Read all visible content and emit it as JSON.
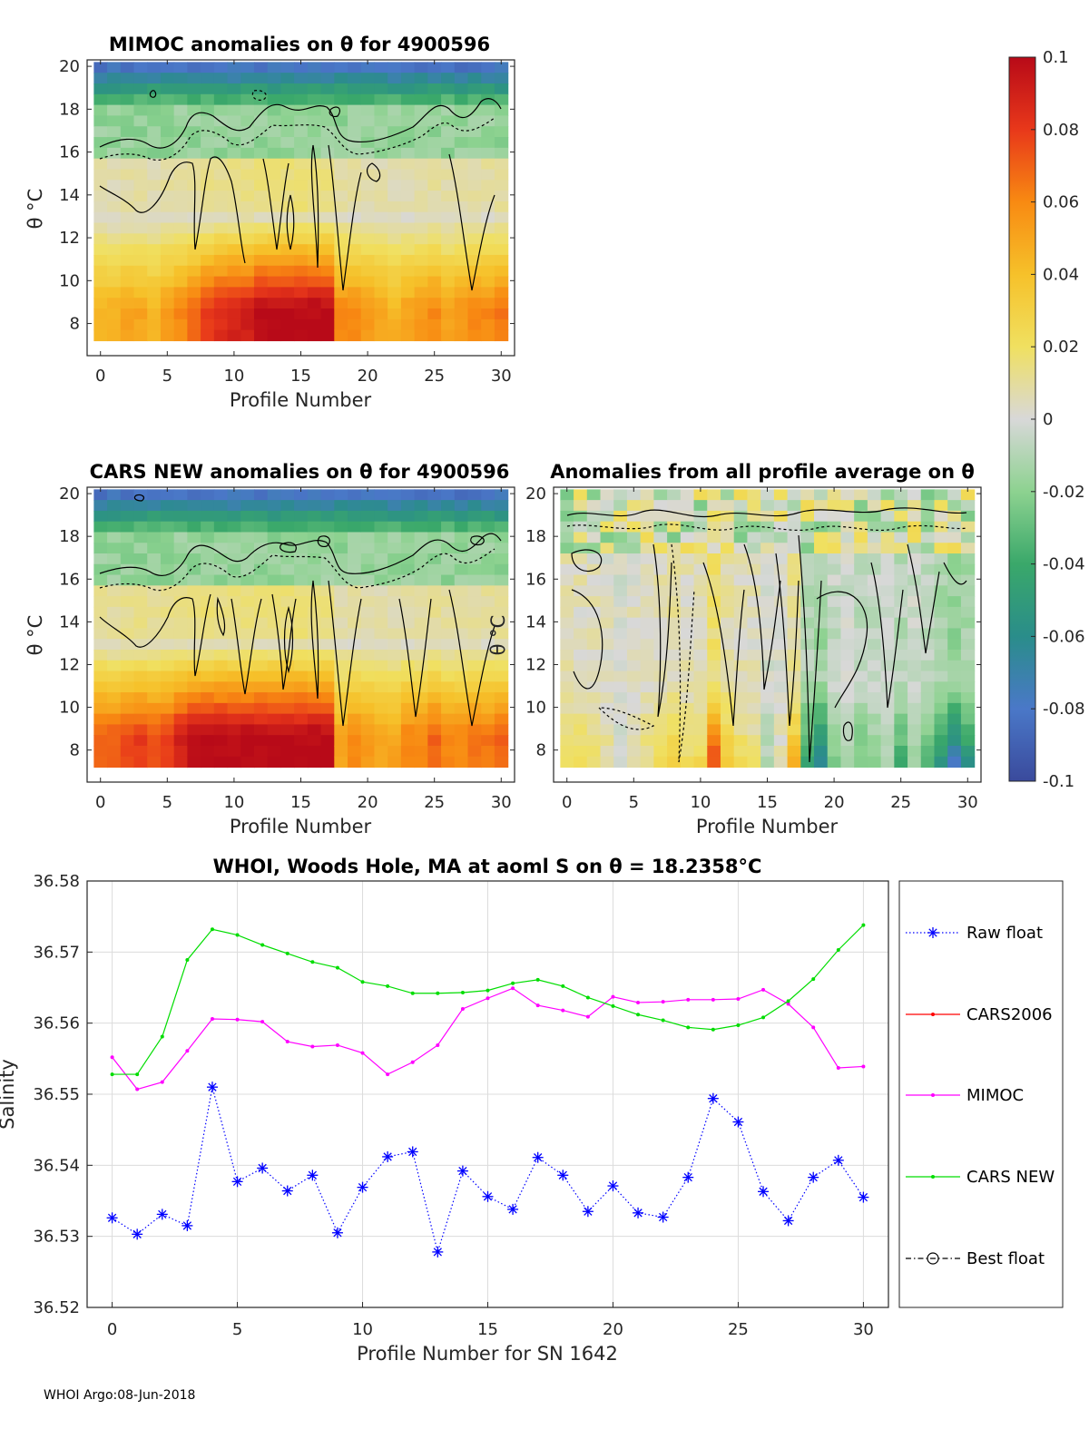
{
  "footer": "WHOI Argo:08-Jun-2018",
  "colors": {
    "raw_float": "#0000ff",
    "cars2006": "#ff0000",
    "mimoc": "#ff00ff",
    "cars_new": "#00dd00",
    "best_float": "#000000"
  },
  "colorbar": {
    "min": -0.1,
    "max": 0.1,
    "tick_labels": [
      "0.1",
      "0.08",
      "0.06",
      "0.04",
      "0.02",
      "0",
      "-0.02",
      "-0.04",
      "-0.06",
      "-0.08",
      "-0.1"
    ]
  },
  "chart_data": [
    {
      "id": "mimoc",
      "type": "heatmap",
      "title": "MIMOC anomalies on θ  for 4900596",
      "xlabel": "Profile Number",
      "ylabel": "θ °C",
      "xlim": [
        -1,
        31
      ],
      "ylim": [
        6.5,
        20.3
      ],
      "x_ticks": [
        "0",
        "5",
        "10",
        "15",
        "20",
        "25",
        "30"
      ],
      "y_ticks": [
        "8",
        "10",
        "12",
        "14",
        "16",
        "18",
        "20"
      ],
      "profile_anomaly_at_8C": [
        0.045,
        0.045,
        0.05,
        0.05,
        0.045,
        0.055,
        0.06,
        0.07,
        0.08,
        0.085,
        0.09,
        0.09,
        0.1,
        0.1,
        0.1,
        0.1,
        0.1,
        0.1,
        0.06,
        0.06,
        0.055,
        0.05,
        0.045,
        0.05,
        0.055,
        0.06,
        0.05,
        0.055,
        0.06,
        0.06,
        0.065
      ]
    },
    {
      "id": "cars_new",
      "type": "heatmap",
      "title": "CARS NEW anomalies on θ for 4900596",
      "xlabel": "Profile Number",
      "ylabel": "θ °C",
      "xlim": [
        -1,
        31
      ],
      "ylim": [
        6.5,
        20.3
      ],
      "x_ticks": [
        "0",
        "5",
        "10",
        "15",
        "20",
        "25",
        "30"
      ],
      "y_ticks": [
        "8",
        "10",
        "12",
        "14",
        "16",
        "18",
        "20"
      ],
      "profile_anomaly_at_8C": [
        0.07,
        0.07,
        0.075,
        0.08,
        0.075,
        0.08,
        0.09,
        0.1,
        0.1,
        0.1,
        0.1,
        0.1,
        0.1,
        0.1,
        0.1,
        0.1,
        0.1,
        0.1,
        0.05,
        0.06,
        0.055,
        0.05,
        0.05,
        0.06,
        0.06,
        0.07,
        0.06,
        0.06,
        0.065,
        0.065,
        0.07
      ]
    },
    {
      "id": "all_profile_avg",
      "type": "heatmap",
      "title": "Anomalies from all profile average on θ",
      "xlabel": "Profile Number",
      "ylabel": "θ °C",
      "xlim": [
        -1,
        31
      ],
      "ylim": [
        6.5,
        20.3
      ],
      "x_ticks": [
        "0",
        "5",
        "10",
        "15",
        "20",
        "25",
        "30"
      ],
      "y_ticks": [
        "8",
        "10",
        "12",
        "14",
        "16",
        "18",
        "20"
      ],
      "profile_anomaly_at_8C": [
        0.02,
        0.02,
        0.015,
        0.01,
        0.0,
        0.01,
        0.015,
        0.025,
        0.03,
        0.02,
        0.025,
        0.07,
        0.035,
        0.02,
        0.015,
        -0.01,
        0.005,
        0.04,
        -0.04,
        -0.06,
        -0.02,
        -0.01,
        -0.025,
        -0.02,
        -0.01,
        -0.035,
        -0.015,
        -0.03,
        -0.05,
        -0.07,
        -0.05
      ]
    },
    {
      "id": "salinity",
      "type": "line",
      "title": "WHOI, Woods Hole, MA at aoml S on θ = 18.2358°C",
      "xlabel": "Profile Number for SN 1642",
      "ylabel": "Salinity",
      "xlim": [
        -1,
        31
      ],
      "ylim": [
        36.52,
        36.58
      ],
      "x_ticks": [
        "0",
        "5",
        "10",
        "15",
        "20",
        "25",
        "30"
      ],
      "y_ticks": [
        "36.52",
        "36.53",
        "36.54",
        "36.55",
        "36.56",
        "36.57",
        "36.58"
      ],
      "legend": [
        "Raw float",
        "CARS2006",
        "MIMOC",
        "CARS NEW",
        "Best float"
      ],
      "legend_position": "outside-right",
      "x": [
        0,
        1,
        2,
        3,
        4,
        5,
        6,
        7,
        8,
        9,
        10,
        11,
        12,
        13,
        14,
        15,
        16,
        17,
        18,
        19,
        20,
        21,
        22,
        23,
        24,
        25,
        26,
        27,
        28,
        29,
        30
      ],
      "series": [
        {
          "name": "Raw float",
          "values": [
            36.5326,
            36.5303,
            36.5331,
            36.5315,
            36.551,
            36.5377,
            36.5396,
            36.5364,
            36.5386,
            36.5305,
            36.5369,
            36.5412,
            36.5419,
            36.5278,
            36.5392,
            36.5356,
            36.5338,
            36.5411,
            36.5386,
            36.5335,
            36.5371,
            36.5333,
            36.5327,
            36.5383,
            36.5494,
            36.5461,
            36.5363,
            36.5322,
            36.5383,
            36.5407,
            36.5355
          ]
        },
        {
          "name": "MIMOC",
          "values": [
            36.5552,
            36.5507,
            36.5517,
            36.5561,
            36.5606,
            36.5605,
            36.5602,
            36.5574,
            36.5567,
            36.5569,
            36.5558,
            36.5528,
            36.5545,
            36.5569,
            36.562,
            36.5635,
            36.5649,
            36.5625,
            36.5618,
            36.5609,
            36.5637,
            36.5629,
            36.563,
            36.5633,
            36.5633,
            36.5634,
            36.5647,
            36.5627,
            36.5594,
            36.5537,
            36.5539
          ]
        },
        {
          "name": "CARS NEW",
          "values": [
            36.5528,
            36.5528,
            36.5581,
            36.5689,
            36.5732,
            36.5724,
            36.571,
            36.5698,
            36.5686,
            36.5678,
            36.5658,
            36.5652,
            36.5642,
            36.5642,
            36.5643,
            36.5646,
            36.5656,
            36.5661,
            36.5652,
            36.5636,
            36.5624,
            36.5612,
            36.5604,
            36.5594,
            36.5591,
            36.5597,
            36.5608,
            36.5631,
            36.5662,
            36.5703,
            36.5738
          ]
        }
      ]
    }
  ]
}
